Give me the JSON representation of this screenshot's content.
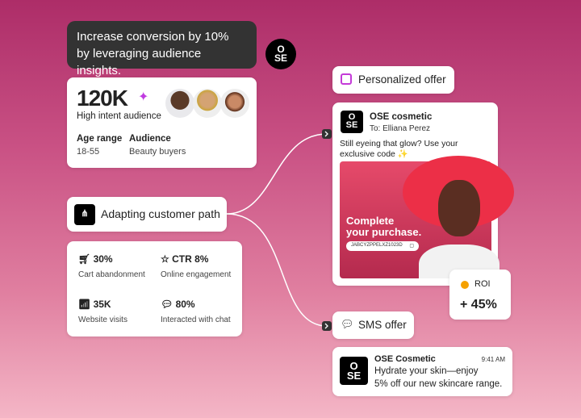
{
  "headline": {
    "line1": "Increase conversion by 10%",
    "line2": "by leveraging audience insights."
  },
  "brand_logo": "OSE",
  "audience": {
    "count": "120K",
    "count_label": "High intent audience",
    "age_label": "Age range",
    "age_value": "18-55",
    "audience_label": "Audience",
    "audience_value": "Beauty buyers"
  },
  "path": {
    "label": "Adapting customer path"
  },
  "stats": [
    {
      "icon": "cart-icon",
      "value": "30%",
      "label": "Cart abandonment"
    },
    {
      "icon": "star-badge-icon",
      "value": "CTR 8%",
      "label": "Online engagement"
    },
    {
      "icon": "chart-icon",
      "value": "35K",
      "label": "Website visits"
    },
    {
      "icon": "chat-icon",
      "value": "80%",
      "label": "Interacted with chat"
    }
  ],
  "offer": {
    "label": "Personalized offer",
    "sender": "OSE cosmetic",
    "to": "To: Elliana Perez",
    "message": "Still eyeing that glow? Use your exclusive code ✨",
    "promo_title_1": "Complete",
    "promo_title_2": "your purchase.",
    "promo_code": "JABCYZPPELXZ1023D"
  },
  "roi": {
    "label": "ROI",
    "value": "+ 45%",
    "color": "#f5a100"
  },
  "sms": {
    "label": "SMS offer",
    "sender": "OSE Cosmetic",
    "time": "9:41 AM",
    "line1": "Hydrate your skin—enjoy",
    "line2": "5% off our new skincare range."
  }
}
